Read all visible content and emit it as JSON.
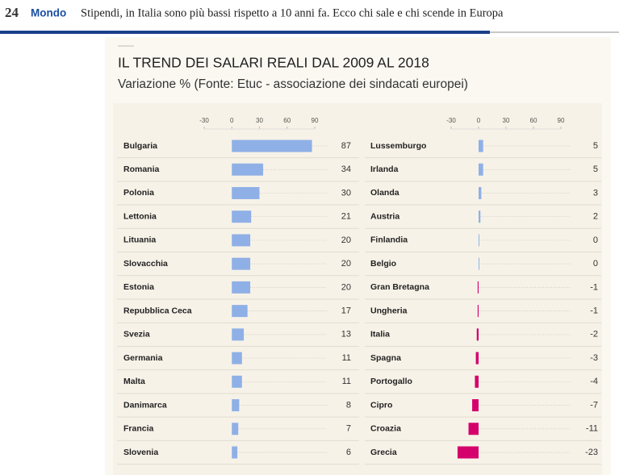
{
  "header": {
    "logo": "24",
    "section": "Mondo",
    "headline": "Stipendi, in Italia sono più bassi rispetto a 10 anni fa. Ecco chi sale e chi scende in Europa"
  },
  "chart_data": [
    {
      "type": "hbar",
      "title": "IL TREND DEI SALARI REALI DAL 2009 AL 2018",
      "subtitle": "Variazione % (Fonte: Etuc - associazione dei sindacati europei)",
      "categories": [
        "Bulgaria",
        "Romania",
        "Polonia",
        "Lettonia",
        "Lituania",
        "Slovacchia",
        "Estonia",
        "Repubblica Ceca",
        "Svezia",
        "Germania",
        "Malta",
        "Danimarca",
        "Francia",
        "Slovenia"
      ],
      "values": [
        87,
        34,
        30,
        21,
        20,
        20,
        20,
        17,
        13,
        11,
        11,
        8,
        7,
        6
      ],
      "xlim": [
        -30,
        90
      ],
      "xticks": [
        -30,
        0,
        30,
        60,
        90
      ],
      "color": "#8fb0e6",
      "negative_color": "#d4006c"
    },
    {
      "type": "hbar",
      "categories": [
        "Lussemburgo",
        "Irlanda",
        "Olanda",
        "Austria",
        "Finlandia",
        "Belgio",
        "Gran Bretagna",
        "Ungheria",
        "Italia",
        "Spagna",
        "Portogallo",
        "Cipro",
        "Croazia",
        "Grecia"
      ],
      "values": [
        5,
        5,
        3,
        2,
        0,
        0,
        -1,
        -1,
        -2,
        -3,
        -4,
        -7,
        -11,
        -23
      ],
      "xlim": [
        -30,
        90
      ],
      "xticks": [
        -30,
        0,
        30,
        60,
        90
      ],
      "color": "#8fb0e6",
      "negative_color": "#d4006c"
    }
  ]
}
